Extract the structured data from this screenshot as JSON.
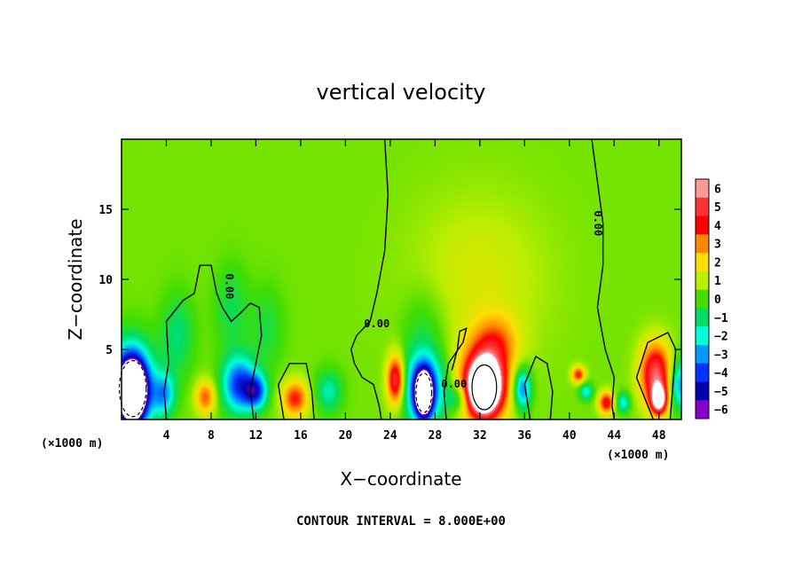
{
  "chart_data": {
    "type": "heatmap",
    "title": "vertical velocity",
    "xlabel": "X−coordinate",
    "ylabel": "Z−coordinate",
    "x_unit_left": "(×1000 m)",
    "x_unit_right": "(×1000 m)",
    "xlim": [
      0,
      50
    ],
    "ylim": [
      0,
      20
    ],
    "x_ticks": [
      {
        "value": 4,
        "label": "4"
      },
      {
        "value": 8,
        "label": "8"
      },
      {
        "value": 12,
        "label": "12"
      },
      {
        "value": 16,
        "label": "16"
      },
      {
        "value": 20,
        "label": "20"
      },
      {
        "value": 24,
        "label": "24"
      },
      {
        "value": 28,
        "label": "28"
      },
      {
        "value": 32,
        "label": "32"
      },
      {
        "value": 36,
        "label": "36"
      },
      {
        "value": 40,
        "label": "40"
      },
      {
        "value": 44,
        "label": "44"
      },
      {
        "value": 48,
        "label": "48"
      }
    ],
    "y_ticks": [
      {
        "value": 5,
        "label": "5"
      },
      {
        "value": 10,
        "label": "10"
      },
      {
        "value": 15,
        "label": "15"
      }
    ],
    "colorbar": {
      "levels": [
        {
          "value": 6,
          "label": "6",
          "color": "#ff9999"
        },
        {
          "value": 5,
          "label": "5",
          "color": "#ff3333"
        },
        {
          "value": 4,
          "label": "4",
          "color": "#ff0000"
        },
        {
          "value": 3,
          "label": "3",
          "color": "#ff8800"
        },
        {
          "value": 2,
          "label": "2",
          "color": "#ffdd00"
        },
        {
          "value": 1,
          "label": "1",
          "color": "#bbee00"
        },
        {
          "value": 0,
          "label": "0",
          "color": "#44dd00"
        },
        {
          "value": -1,
          "label": "−1",
          "color": "#00dd66"
        },
        {
          "value": -2,
          "label": "−2",
          "color": "#00ffdd"
        },
        {
          "value": -3,
          "label": "−3",
          "color": "#0099ff"
        },
        {
          "value": -4,
          "label": "−4",
          "color": "#0033ff"
        },
        {
          "value": -5,
          "label": "−5",
          "color": "#0000aa"
        },
        {
          "value": -6,
          "label": "−6",
          "color": "#8800cc"
        }
      ]
    },
    "background_value": 0.4,
    "features": [
      {
        "x": 0.8,
        "z": 2.3,
        "rx": 2.0,
        "rz": 3.0,
        "w": -6.5
      },
      {
        "x": 1.0,
        "z": 2.0,
        "rx": 1.0,
        "rz": 1.8,
        "w": -12
      },
      {
        "x": 3.8,
        "z": 1.8,
        "rx": 1.0,
        "rz": 1.5,
        "w": -3
      },
      {
        "x": 7.5,
        "z": 1.6,
        "rx": 0.9,
        "rz": 1.2,
        "w": 3
      },
      {
        "x": 10.5,
        "z": 2.5,
        "rx": 1.5,
        "rz": 2.0,
        "w": -4.5
      },
      {
        "x": 12.0,
        "z": 2.0,
        "rx": 1.0,
        "rz": 1.2,
        "w": -4
      },
      {
        "x": 15.5,
        "z": 1.5,
        "rx": 1.2,
        "rz": 1.3,
        "w": 3.5
      },
      {
        "x": 18.5,
        "z": 2.0,
        "rx": 1.2,
        "rz": 1.5,
        "w": -2
      },
      {
        "x": 24.5,
        "z": 2.8,
        "rx": 0.8,
        "rz": 1.8,
        "w": 5
      },
      {
        "x": 27.0,
        "z": 2.2,
        "rx": 1.8,
        "rz": 2.5,
        "w": -5
      },
      {
        "x": 27.0,
        "z": 1.8,
        "rx": 0.7,
        "rz": 1.5,
        "w": -9
      },
      {
        "x": 30.0,
        "z": 1.5,
        "rx": 1.0,
        "rz": 1.0,
        "w": -2
      },
      {
        "x": 32.4,
        "z": 2.5,
        "rx": 2.2,
        "rz": 2.8,
        "w": 5.5
      },
      {
        "x": 32.4,
        "z": 2.3,
        "rx": 1.2,
        "rz": 1.6,
        "w": 9
      },
      {
        "x": 33.5,
        "z": 5.5,
        "rx": 2.0,
        "rz": 2.0,
        "w": 2
      },
      {
        "x": 32.0,
        "z": 10.0,
        "rx": 6.0,
        "rz": 6.0,
        "w": 1
      },
      {
        "x": 35.8,
        "z": 2.2,
        "rx": 0.8,
        "rz": 1.5,
        "w": -4
      },
      {
        "x": 40.8,
        "z": 3.2,
        "rx": 0.6,
        "rz": 0.6,
        "w": 3.5
      },
      {
        "x": 41.5,
        "z": 2.0,
        "rx": 0.6,
        "rz": 0.6,
        "w": -2.5
      },
      {
        "x": 43.3,
        "z": 1.2,
        "rx": 0.7,
        "rz": 0.8,
        "w": 4
      },
      {
        "x": 44.8,
        "z": 1.2,
        "rx": 0.6,
        "rz": 0.7,
        "w": -2.5
      },
      {
        "x": 47.7,
        "z": 3.2,
        "rx": 1.4,
        "rz": 2.3,
        "w": 5
      },
      {
        "x": 48.0,
        "z": 1.4,
        "rx": 0.7,
        "rz": 1.0,
        "w": 6
      },
      {
        "x": 49.8,
        "z": 2.5,
        "rx": 0.8,
        "rz": 1.8,
        "w": -3.5
      },
      {
        "x": 5.0,
        "z": 6.0,
        "rx": 1.5,
        "rz": 3.0,
        "w": -1.5
      },
      {
        "x": 9.8,
        "z": 8.0,
        "rx": 1.5,
        "rz": 3.0,
        "w": -1.2
      },
      {
        "x": 13.0,
        "z": 6.5,
        "rx": 1.5,
        "rz": 3.0,
        "w": -1.0
      },
      {
        "x": 27.0,
        "z": 6.5,
        "rx": 2.0,
        "rz": 3.0,
        "w": -1.0
      }
    ],
    "contour_lines": [
      {
        "label": "0.00",
        "label_x": 9.6,
        "label_z": 9.5,
        "label_rotate": 90,
        "points": [
          [
            4.0,
            0.0
          ],
          [
            3.8,
            2.0
          ],
          [
            4.2,
            4.0
          ],
          [
            4.0,
            7.0
          ],
          [
            5.5,
            8.5
          ],
          [
            6.5,
            9.0
          ],
          [
            7.0,
            11.0
          ],
          [
            8.0,
            11.0
          ],
          [
            8.5,
            9.0
          ],
          [
            9.0,
            8.0
          ],
          [
            9.8,
            7.0
          ],
          [
            10.5,
            7.5
          ],
          [
            11.5,
            8.3
          ],
          [
            12.3,
            8.0
          ],
          [
            12.5,
            6.0
          ],
          [
            12.0,
            4.0
          ],
          [
            11.5,
            2.0
          ],
          [
            11.8,
            0.0
          ]
        ]
      },
      {
        "label": "0.00",
        "label_x": 22.8,
        "label_z": 6.8,
        "label_rotate": 0,
        "points": [
          [
            23.5,
            20.0
          ],
          [
            23.8,
            16.0
          ],
          [
            23.5,
            12.0
          ],
          [
            22.8,
            9.0
          ],
          [
            22.2,
            7.0
          ],
          [
            21.0,
            6.0
          ],
          [
            20.5,
            5.0
          ],
          [
            20.8,
            4.0
          ],
          [
            21.5,
            3.0
          ],
          [
            22.5,
            2.5
          ],
          [
            23.0,
            1.0
          ],
          [
            23.2,
            0.0
          ]
        ]
      },
      {
        "label": "0.00",
        "label_x": 42.5,
        "label_z": 14.0,
        "label_rotate": 90,
        "points": [
          [
            42.0,
            20.0
          ],
          [
            42.5,
            17.0
          ],
          [
            43.0,
            14.0
          ],
          [
            43.0,
            11.0
          ],
          [
            42.5,
            8.0
          ],
          [
            43.2,
            5.0
          ],
          [
            44.0,
            3.0
          ],
          [
            43.8,
            1.0
          ],
          [
            44.0,
            0.0
          ]
        ]
      },
      {
        "label": "0.00",
        "label_x": 29.7,
        "label_z": 2.5,
        "label_rotate": 0,
        "points": [
          [
            29.0,
            0.0
          ],
          [
            28.8,
            2.0
          ],
          [
            29.2,
            4.0
          ],
          [
            30.5,
            5.5
          ],
          [
            30.8,
            6.5
          ],
          [
            30.2,
            6.3
          ],
          [
            30.0,
            5.0
          ],
          [
            29.5,
            3.5
          ]
        ]
      },
      {
        "label": "",
        "label_x": 0,
        "label_z": 0,
        "label_rotate": 0,
        "points": [
          [
            47.5,
            0.0
          ],
          [
            46.0,
            3.0
          ],
          [
            47.0,
            5.5
          ],
          [
            48.8,
            6.2
          ],
          [
            49.5,
            5.0
          ],
          [
            49.3,
            3.0
          ],
          [
            49.0,
            0.0
          ]
        ]
      },
      {
        "label": "",
        "label_x": 0,
        "label_z": 0,
        "label_rotate": 0,
        "points": [
          [
            14.5,
            0.0
          ],
          [
            14.0,
            2.5
          ],
          [
            15.0,
            4.0
          ],
          [
            16.5,
            4.0
          ],
          [
            17.0,
            2.0
          ],
          [
            17.2,
            0.0
          ]
        ]
      },
      {
        "label": "",
        "label_x": 0,
        "label_z": 0,
        "label_rotate": 0,
        "points": [
          [
            36.5,
            0.0
          ],
          [
            36.0,
            2.5
          ],
          [
            37.0,
            4.5
          ],
          [
            38.0,
            4.0
          ],
          [
            38.5,
            2.0
          ],
          [
            38.3,
            0.0
          ]
        ]
      }
    ],
    "closed_contours": [
      {
        "x": 1.0,
        "z": 2.2,
        "rx": 1.2,
        "rz": 2.0,
        "dashed": true
      },
      {
        "x": 27.0,
        "z": 1.9,
        "rx": 0.7,
        "rz": 1.4,
        "dashed": true
      },
      {
        "x": 32.4,
        "z": 2.3,
        "rx": 1.1,
        "rz": 1.6,
        "dashed": false
      }
    ]
  },
  "footer": {
    "contour_interval": "CONTOUR INTERVAL = 8.000E+00"
  }
}
